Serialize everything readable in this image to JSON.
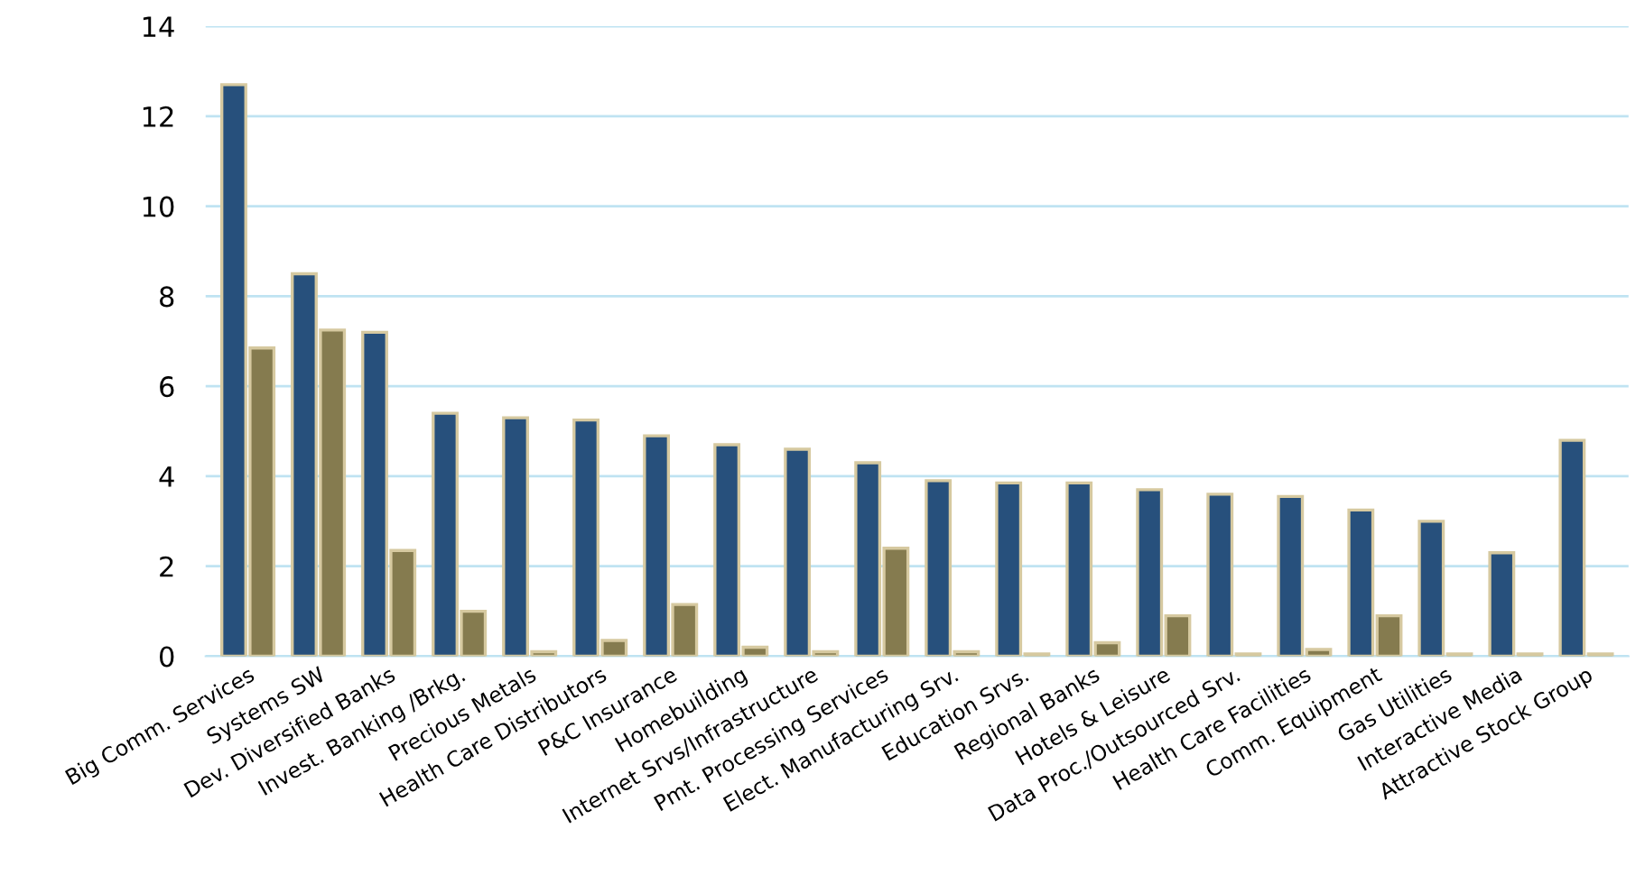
{
  "chart_data": {
    "type": "bar",
    "categories": [
      "Big Comm. Services",
      "Systems SW",
      "Dev. Diversified Banks",
      "Invest. Banking /Brkg.",
      "Precious Metals",
      "Health Care Distributors",
      "P&C Insurance",
      "Homebuilding",
      "Internet Srvs/Infrastructure",
      "Pmt. Processing Services",
      "Elect. Manufacturing Srv.",
      "Education Srvs.",
      "Regional Banks",
      "Hotels & Leisure",
      "Data Proc./Outsourced Srv.",
      "Health Care Facilities",
      "Comm. Equipment",
      "Gas Utilities",
      "Interactive Media",
      "Attractive Stock Group"
    ],
    "series": [
      {
        "color": "#27507c",
        "values": [
          12.7,
          8.5,
          7.2,
          5.4,
          5.3,
          5.25,
          4.9,
          4.7,
          4.6,
          4.3,
          3.9,
          3.85,
          3.85,
          3.7,
          3.6,
          3.55,
          3.25,
          3.0,
          2.3,
          4.8
        ]
      },
      {
        "color": "#857b4f",
        "values": [
          6.85,
          7.25,
          2.35,
          1.0,
          0.1,
          0.35,
          1.15,
          0.2,
          0.1,
          2.4,
          0.1,
          0.05,
          0.3,
          0.9,
          0.05,
          0.15,
          0.9,
          0.05,
          0.05,
          0.05
        ]
      }
    ],
    "ylim": [
      0,
      14
    ],
    "yticks": [
      0,
      2,
      4,
      6,
      8,
      10,
      12,
      14
    ],
    "grid": "y"
  }
}
